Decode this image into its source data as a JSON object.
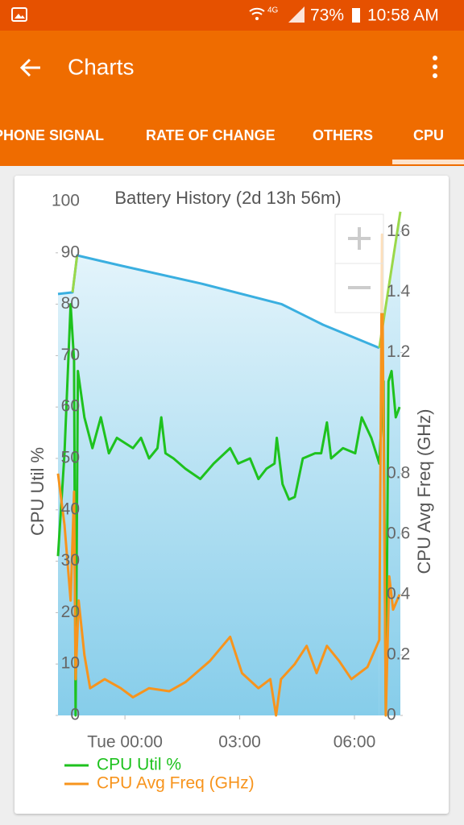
{
  "status_bar": {
    "network": "4G",
    "battery": "73%",
    "time": "10:58 AM"
  },
  "app_bar": {
    "title": "Charts"
  },
  "tabs": [
    "PHONE SIGNAL",
    "RATE OF CHANGE",
    "OTHERS",
    "CPU"
  ],
  "chart_data": {
    "type": "line",
    "title": "Battery History (2d 13h 56m)",
    "ylabel": "CPU Util %",
    "y2label": "CPU Avg Freq (GHz)",
    "xlim": [
      -1.75,
      7.2
    ],
    "xticks": [
      {
        "value": 0,
        "label": "Tue 00:00"
      },
      {
        "value": 3,
        "label": "03:00"
      },
      {
        "value": 6,
        "label": "06:00"
      }
    ],
    "ylim": [
      0,
      100
    ],
    "yticks": [
      0,
      10,
      20,
      30,
      40,
      50,
      60,
      70,
      80,
      90,
      100
    ],
    "y2lim": [
      0,
      1.7
    ],
    "y2ticks": [
      0,
      0.2,
      0.4,
      0.6,
      0.8,
      1.2,
      1.4,
      1.6
    ],
    "series": [
      {
        "color": "#3aafe0",
        "area": true,
        "x": [
          -1.75,
          -1.37,
          -1.25,
          -0.1,
          2.0,
          4.1,
          5.18,
          6.65
        ],
        "values": [
          82,
          82.3,
          89.5,
          87.5,
          84,
          80,
          76,
          71.5
        ]
      },
      {
        "color": "#9ad84a",
        "area": true,
        "x": [
          -1.37,
          -1.25,
          null,
          6.65,
          7.2
        ],
        "values": [
          82.3,
          89.5,
          null,
          71.5,
          98
        ]
      },
      {
        "name": "CPU Util %",
        "color": "#1ec21e",
        "x": [
          -1.75,
          -1.58,
          -1.42,
          -1.33,
          -1.29,
          -1.23,
          -1.06,
          -0.85,
          -0.63,
          -0.42,
          -0.21,
          0,
          0.21,
          0.42,
          0.63,
          0.85,
          0.95,
          1.06,
          1.27,
          1.58,
          1.97,
          2.32,
          2.75,
          2.96,
          3.27,
          3.49,
          3.7,
          3.91,
          3.97,
          4.12,
          4.29,
          4.44,
          4.65,
          4.97,
          5.13,
          5.28,
          5.39,
          5.7,
          6.02,
          6.19,
          6.44,
          6.65,
          6.76,
          6.82,
          6.89,
          6.97,
          7.08,
          7.18
        ],
        "values": [
          31,
          51,
          80,
          69,
          0,
          67,
          58,
          52,
          58,
          51,
          54,
          53,
          52,
          54,
          50,
          52,
          58,
          51,
          50,
          48,
          46,
          49,
          52,
          49,
          50,
          46,
          48,
          49,
          54,
          45,
          42,
          42.5,
          50,
          51,
          51,
          57,
          50,
          52,
          51,
          58,
          54,
          49,
          65,
          0,
          65,
          67,
          58,
          60
        ]
      },
      {
        "name": "CPU Avg Freq (GHz)",
        "color": "#f7941d",
        "axis": "y2",
        "x": [
          -1.75,
          -1.58,
          -1.42,
          -1.33,
          -1.29,
          -1.21,
          -1.06,
          -0.91,
          -0.53,
          -0.11,
          0.21,
          0.63,
          1.16,
          1.58,
          2.22,
          2.75,
          3.06,
          3.49,
          3.8,
          3.95,
          4.08,
          4.44,
          4.75,
          5.01,
          5.28,
          5.6,
          5.92,
          6.34,
          6.65,
          6.72,
          6.82,
          6.91,
          7.01,
          7.18
        ],
        "values": [
          0.8,
          0.63,
          0.38,
          0.74,
          0.12,
          0.38,
          0.2,
          0.09,
          0.12,
          0.09,
          0.06,
          0.09,
          0.08,
          0.11,
          0.18,
          0.26,
          0.14,
          0.09,
          0.12,
          0,
          0.12,
          0.17,
          0.23,
          0.14,
          0.23,
          0.18,
          0.12,
          0.16,
          0.25,
          1.59,
          0,
          0.46,
          0.35,
          0.4
        ]
      }
    ]
  }
}
